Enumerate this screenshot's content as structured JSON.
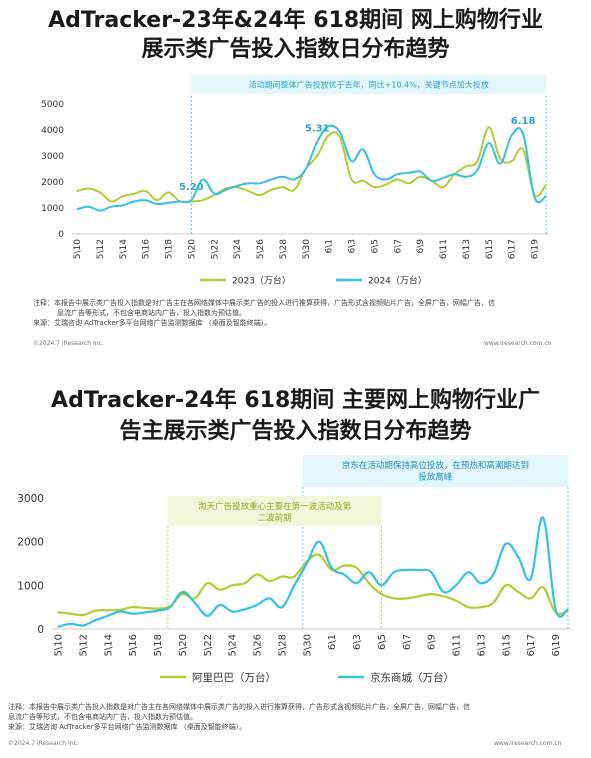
{
  "section1": {
    "title_line1": "AdTracker-23年&24年 618期间 网上购物行业",
    "title_line2": "展示类广告投入指数日分布趋势",
    "callout": "活动期间整体广告投放优于去年，同比+10.4%，关键节点加大投放",
    "note_lines": [
      "注释：本报告中展示类广告投入指数是对广告主在各网络媒体中展示类广告的投入进行推算获得，广告形式含视频贴片广告，全屏广告，网幅广告，信",
      "息流广告等形式，不包含电商站内广告，投入指数为预估值。",
      "来源：艾瑞咨询 AdTracker多平台网络广告监测数据库 （桌面及智能终端）。"
    ],
    "footer_left": "©2024.7 iResearch Inc.",
    "footer_right": "www.iresearch.com.cn"
  },
  "section2": {
    "title_line1": "AdTracker-24年 618期间 主要网上购物行业广",
    "title_line2": "告主展示类广告投入指数日分布趋势",
    "callout_green_line1": "淘天广告投放重心主要在第一波活动及第",
    "callout_green_line2": "二波前期",
    "callout_blue_line1": "京东在活动期保持高位投放，在预热和高潮期达到",
    "callout_blue_line2": "投放高峰",
    "note_lines": [
      "注释：本报告中展示类广告投入指数是对广告主在各网络媒体中展示类广告的投入进行推算获得，广告形式含视频贴片广告，全屏广告，网幅广告，信",
      "息流广告等形式，不包含电商站内广告，投入指数为预估值。",
      "来源：艾瑞咨询 AdTracker多平台网络广告监测数据库 （桌面及智能终端）。"
    ],
    "footer_left": "©2024.7 iResearch Inc.",
    "footer_right": "www.iresearch.com.cn"
  },
  "colors": {
    "green": "#b3cc33",
    "blue": "#33c3e0",
    "label_blue": "#2aa5d6"
  },
  "chart_data": [
    {
      "type": "line",
      "x": [
        "5\\10",
        "5\\11",
        "5\\12",
        "5\\13",
        "5\\14",
        "5\\15",
        "5\\16",
        "5\\17",
        "5\\18",
        "5\\19",
        "5\\20",
        "5\\21",
        "5\\22",
        "5\\23",
        "5\\24",
        "5\\25",
        "5\\26",
        "5\\27",
        "5\\28",
        "5\\29",
        "5\\30",
        "5\\31",
        "6\\1",
        "6\\2",
        "6\\3",
        "6\\4",
        "6\\5",
        "6\\6",
        "6\\7",
        "6\\8",
        "6\\9",
        "6\\10",
        "6\\11",
        "6\\12",
        "6\\13",
        "6\\14",
        "6\\15",
        "6\\16",
        "6\\17",
        "6\\18",
        "6\\19",
        "6\\20"
      ],
      "tick_labels": [
        "5\\10",
        "5\\12",
        "5\\14",
        "5\\16",
        "5\\18",
        "5\\20",
        "5\\22",
        "5\\24",
        "5\\26",
        "5\\28",
        "5\\30",
        "6\\1",
        "6\\3",
        "6\\5",
        "6\\7",
        "6\\9",
        "6\\11",
        "6\\13",
        "6\\15",
        "6\\17",
        "6\\19"
      ],
      "series": [
        {
          "name": "2023（万台）",
          "values": [
            1650,
            1750,
            1600,
            1250,
            1450,
            1550,
            1650,
            1300,
            1600,
            1250,
            1250,
            1300,
            1500,
            1750,
            1800,
            1650,
            1500,
            1700,
            1800,
            1700,
            2500,
            3000,
            3800,
            3700,
            2100,
            2050,
            1800,
            1900,
            2100,
            1950,
            2200,
            2050,
            1800,
            2300,
            2600,
            2800,
            4100,
            2900,
            2800,
            3250,
            1500,
            1900
          ]
        },
        {
          "name": "2024（万台）",
          "values": [
            950,
            1050,
            900,
            1050,
            1100,
            1250,
            1300,
            1150,
            1200,
            1250,
            1300,
            2100,
            1550,
            1700,
            1850,
            1950,
            1950,
            2100,
            2200,
            2100,
            2500,
            3550,
            4150,
            3900,
            2800,
            3250,
            2300,
            2100,
            2300,
            2350,
            2400,
            2050,
            2150,
            2300,
            2200,
            2450,
            3500,
            2700,
            3800,
            3850,
            1400,
            1450
          ]
        }
      ],
      "data_labels": [
        {
          "x": "5\\20",
          "text": "5.20"
        },
        {
          "x": "5\\31",
          "text": "5.31"
        },
        {
          "x": "6\\18",
          "text": "6.18"
        }
      ],
      "y_ticks": [
        0,
        1000,
        2000,
        3000,
        4000,
        5000
      ],
      "ylim": [
        0,
        5000
      ],
      "grid": false,
      "legend": "bottom"
    },
    {
      "type": "line",
      "x": [
        "5\\10",
        "5\\11",
        "5\\12",
        "5\\13",
        "5\\14",
        "5\\15",
        "5\\16",
        "5\\17",
        "5\\18",
        "5\\19",
        "5\\20",
        "5\\21",
        "5\\22",
        "5\\23",
        "5\\24",
        "5\\25",
        "5\\26",
        "5\\27",
        "5\\28",
        "5\\29",
        "5\\30",
        "5\\31",
        "6\\1",
        "6\\2",
        "6\\3",
        "6\\4",
        "6\\5",
        "6\\6",
        "6\\7",
        "6\\8",
        "6\\9",
        "6\\10",
        "6\\11",
        "6\\12",
        "6\\13",
        "6\\14",
        "6\\15",
        "6\\16",
        "6\\17",
        "6\\18",
        "6\\19",
        "6\\20"
      ],
      "tick_labels": [
        "5\\10",
        "5\\12",
        "5\\14",
        "5\\16",
        "5\\18",
        "5\\20",
        "5\\22",
        "5\\24",
        "5\\26",
        "5\\28",
        "5\\30",
        "6\\1",
        "6\\3",
        "6\\5",
        "6\\7",
        "6\\9",
        "6\\11",
        "6\\13",
        "6\\15",
        "6\\17",
        "6\\19"
      ],
      "series": [
        {
          "name": "阿里巴巴（万台）",
          "values": [
            380,
            350,
            320,
            420,
            430,
            440,
            500,
            480,
            470,
            520,
            800,
            700,
            1050,
            900,
            1000,
            1050,
            1250,
            1100,
            1200,
            1200,
            1550,
            1700,
            1350,
            1450,
            1400,
            1050,
            800,
            700,
            700,
            750,
            800,
            750,
            650,
            500,
            500,
            600,
            1000,
            850,
            700,
            950,
            380,
            420
          ]
        },
        {
          "name": "京东商城（万台）",
          "values": [
            50,
            120,
            80,
            200,
            300,
            400,
            350,
            380,
            420,
            500,
            850,
            600,
            300,
            550,
            400,
            450,
            550,
            700,
            500,
            1000,
            1500,
            2000,
            1400,
            1250,
            1050,
            1300,
            1000,
            1300,
            1350,
            1350,
            1300,
            850,
            1000,
            1300,
            1050,
            1250,
            1950,
            1650,
            1150,
            2550,
            450,
            450
          ]
        }
      ],
      "y_ticks": [
        0,
        1000,
        2000,
        3000
      ],
      "ylim": [
        0,
        3000
      ],
      "grid": false,
      "legend": "bottom"
    }
  ]
}
